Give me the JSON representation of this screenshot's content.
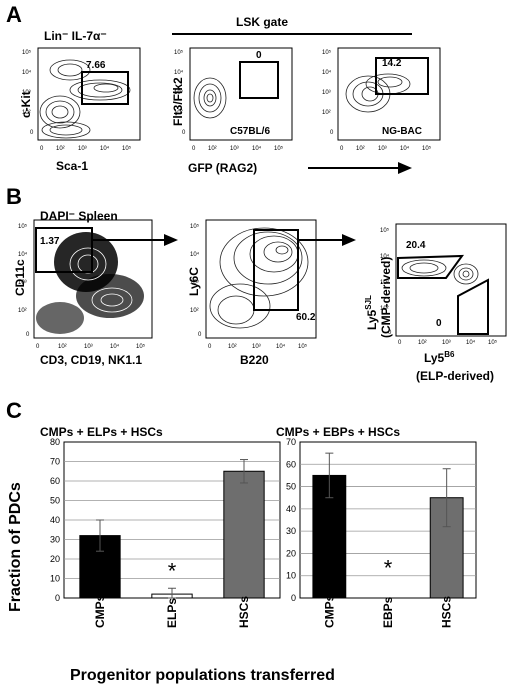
{
  "panels": {
    "A": {
      "letter": "A",
      "plot1": {
        "title": "Lin⁻ IL-7α⁻",
        "xlabel": "Sca-1",
        "ylabel": "c-Kit",
        "gate_value": "7.66"
      },
      "lsk_label": "LSK gate",
      "plot2": {
        "ylabel": "Flt3/Flk2",
        "gate_value": "0",
        "strain": "C57BL/6"
      },
      "plot3": {
        "gate_value": "14.2",
        "strain": "NG-BAC"
      },
      "shared_xlabel": "GFP (RAG2)"
    },
    "B": {
      "letter": "B",
      "plot1": {
        "title": "DAPI⁻ Spleen",
        "xlabel": "CD3, CD19, NK1.1",
        "ylabel": "CD11c",
        "gate_value": "1.37"
      },
      "plot2": {
        "xlabel": "B220",
        "ylabel": "Ly6C",
        "gate_value": "60.2"
      },
      "plot3": {
        "ylabel_main": "Ly5",
        "ylabel_sup": "SJL",
        "ylabel_sub": "(CMP-derived)",
        "xlabel_main": "Ly5",
        "xlabel_sup": "B6",
        "xlabel_sub": "(ELP-derived)",
        "gate_upper": "20.4",
        "gate_lower": "0"
      }
    },
    "C": {
      "letter": "C",
      "ylabel": "Fraction of PDCs",
      "xlabel": "Progenitor populations transferred",
      "significance_marker": "*"
    }
  },
  "tick_labels": {
    "y_decades": [
      "10⁵",
      "10⁴",
      "10³",
      "10²",
      "0"
    ],
    "x_decades": [
      "0",
      "10²",
      "10³",
      "10⁴",
      "10⁵"
    ]
  },
  "colors": {
    "cmp_bar": "#000000",
    "elp_bar": "#ffffff",
    "hsc_bar": "#6e6e6e"
  },
  "chart_data": [
    {
      "type": "bar",
      "title": "CMPs + ELPs + HSCs",
      "categories": [
        "CMPs",
        "ELPs",
        "HSCs"
      ],
      "values": [
        32,
        2,
        65
      ],
      "errors": [
        8,
        3,
        6
      ],
      "ylim": [
        0,
        80
      ],
      "yticks": [
        0,
        10,
        20,
        30,
        40,
        50,
        60,
        70,
        80
      ],
      "ylabel": "Fraction of PDCs",
      "xlabel": "Progenitor populations transferred",
      "grid": true,
      "annotation": {
        "category": "ELPs",
        "text": "*"
      }
    },
    {
      "type": "bar",
      "title": "CMPs + EBPs + HSCs",
      "categories": [
        "CMPs",
        "EBPs",
        "HSCs"
      ],
      "values": [
        55,
        0,
        45
      ],
      "errors": [
        10,
        0,
        13
      ],
      "ylim": [
        0,
        70
      ],
      "yticks": [
        0,
        10,
        20,
        30,
        40,
        50,
        60,
        70
      ],
      "xlabel": "Progenitor populations transferred",
      "grid": true,
      "annotation": {
        "category": "EBPs",
        "text": "*"
      }
    }
  ]
}
